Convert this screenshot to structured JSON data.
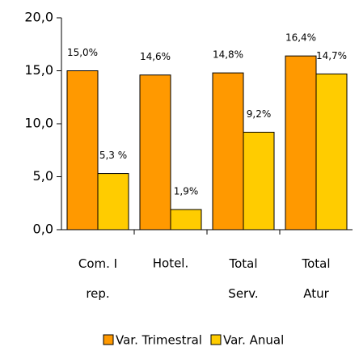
{
  "chart_data": {
    "type": "bar",
    "categories": [
      "Com. I\nrep.",
      "Hotel.",
      "Total\nServ.",
      "Total\nAtur"
    ],
    "series": [
      {
        "name": "Var. Trimestral",
        "color": "#ff9900",
        "values": [
          15.0,
          14.6,
          14.8,
          16.4
        ],
        "value_labels": [
          "15,0%",
          "14,6%",
          "14,8%",
          "16,4%"
        ]
      },
      {
        "name": "Var. Anual",
        "color": "#ffcc00",
        "values": [
          5.3,
          1.9,
          9.2,
          14.7
        ],
        "value_labels": [
          "5,3 %",
          "1,9%",
          "9,2%",
          "14,7%"
        ]
      }
    ],
    "ylim": [
      0,
      20
    ],
    "yticks": [
      {
        "value": 0,
        "label": "0,0"
      },
      {
        "value": 5,
        "label": "5,0"
      },
      {
        "value": 10,
        "label": "10,0"
      },
      {
        "value": 15,
        "label": "15,0"
      },
      {
        "value": 20,
        "label": "20,0"
      }
    ],
    "legend": "bottom"
  }
}
